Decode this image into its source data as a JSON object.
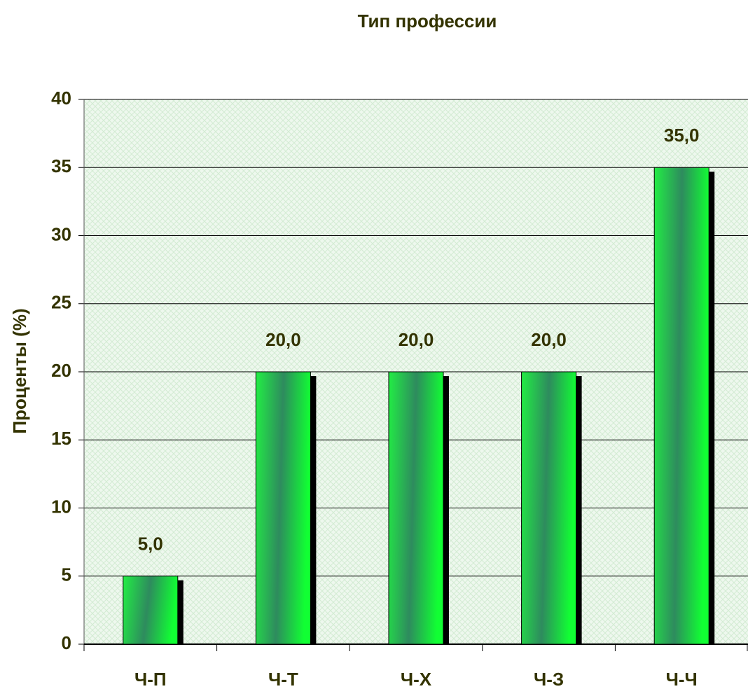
{
  "chart_data": {
    "type": "bar",
    "title": "Тип профессии",
    "y_label": "Проценты (%)",
    "categories": [
      "Ч-П",
      "Ч-Т",
      "Ч-Х",
      "Ч-З",
      "Ч-Ч"
    ],
    "values": [
      5,
      20,
      20,
      20,
      35
    ],
    "value_labels": [
      "5,0",
      "20,0",
      "20,0",
      "20,0",
      "35,0"
    ],
    "color": "#00ff33",
    "ylim": [
      0,
      40
    ],
    "yticks": [
      0,
      5,
      10,
      15,
      20,
      25,
      30,
      35,
      40
    ],
    "grid": true
  }
}
